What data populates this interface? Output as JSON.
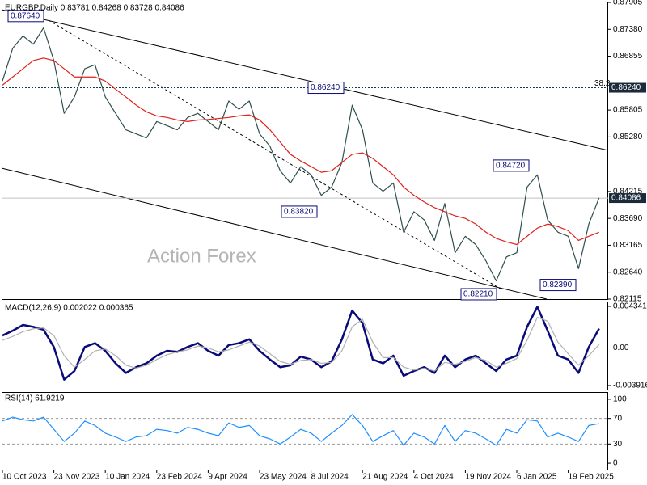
{
  "chart_data": [
    {
      "type": "line",
      "title": "EURGBP,Daily  0.83781 0.84268 0.83728 0.84086",
      "watermark": "Action Forex",
      "categories": [
        "10 Oct 2023",
        null,
        null,
        null,
        null,
        "23 Nov 2023",
        null,
        null,
        null,
        null,
        "10 Jan 2024",
        null,
        null,
        null,
        null,
        "23 Feb 2024",
        null,
        null,
        null,
        null,
        "9 Apr 2024",
        null,
        null,
        null,
        null,
        "23 May 2024",
        null,
        null,
        null,
        null,
        "8 Jul 2024",
        null,
        null,
        null,
        null,
        "21 Aug 2024",
        null,
        null,
        null,
        null,
        "4 Oct 2024",
        null,
        null,
        null,
        null,
        "19 Nov 2024",
        null,
        null,
        null,
        null,
        "6 Jan 2025",
        null,
        null,
        null,
        null,
        "19 Feb 2025",
        null,
        null,
        null
      ],
      "series": [
        {
          "color": "#2f4f4f",
          "values": [
            0.8637,
            0.8701,
            0.8725,
            0.8709,
            0.8741,
            0.8677,
            0.8574,
            0.8606,
            0.8661,
            0.8669,
            0.8606,
            0.8574,
            0.8542,
            0.8534,
            0.8526,
            0.8558,
            0.855,
            0.8542,
            0.8566,
            0.8574,
            0.8558,
            0.8542,
            0.8598,
            0.8582,
            0.8598,
            0.8534,
            0.851,
            0.8462,
            0.8438,
            0.847,
            0.8454,
            0.8414,
            0.843,
            0.8478,
            0.859,
            0.8542,
            0.8438,
            0.8422,
            0.8438,
            0.8342,
            0.8382,
            0.8366,
            0.8326,
            0.8398,
            0.8302,
            0.8334,
            0.8318,
            0.8286,
            0.8247,
            0.8294,
            0.8302,
            0.843,
            0.8454,
            0.8366,
            0.8342,
            0.8334,
            0.8271,
            0.8358,
            0.8409
          ]
        },
        {
          "color": "#e0201b",
          "values": [
            0.8629,
            0.8645,
            0.8661,
            0.8677,
            0.8682,
            0.8677,
            0.8661,
            0.8645,
            0.8645,
            0.8645,
            0.8637,
            0.8621,
            0.8606,
            0.859,
            0.8577,
            0.8569,
            0.8566,
            0.8561,
            0.8558,
            0.8561,
            0.8562,
            0.8564,
            0.8566,
            0.8569,
            0.8571,
            0.8561,
            0.8542,
            0.8518,
            0.8494,
            0.8481,
            0.847,
            0.8459,
            0.8462,
            0.8478,
            0.8494,
            0.8497,
            0.8486,
            0.847,
            0.8454,
            0.843,
            0.8414,
            0.8401,
            0.839,
            0.8382,
            0.8374,
            0.8369,
            0.8358,
            0.8342,
            0.833,
            0.8323,
            0.8318,
            0.8334,
            0.835,
            0.8358,
            0.8353,
            0.8345,
            0.8326,
            0.8334,
            0.8342
          ]
        }
      ],
      "ylim": [
        0.82115,
        0.87905
      ],
      "yticks": [
        {
          "value": 0.87905,
          "label": "0.87905"
        },
        {
          "value": 0.8738,
          "label": "0.87380"
        },
        {
          "value": 0.86855,
          "label": "0.86855"
        },
        {
          "value": 0.85805,
          "label": "0.85805"
        },
        {
          "value": 0.8528,
          "label": "0.85280"
        },
        {
          "value": 0.84215,
          "label": "0.84215"
        },
        {
          "value": 0.8369,
          "label": "0.83690"
        },
        {
          "value": 0.83165,
          "label": "0.83165"
        },
        {
          "value": 0.8264,
          "label": "0.82640"
        },
        {
          "value": 0.82115,
          "label": "0.82115"
        }
      ],
      "annotations": [
        {
          "value": 0.8764,
          "label": "0.87640"
        },
        {
          "value": 0.8624,
          "label": "0.86240"
        },
        {
          "value": 0.8382,
          "label": "0.83820"
        },
        {
          "value": 0.8221,
          "label": "0.82210"
        },
        {
          "value": 0.8472,
          "label": "0.84720"
        },
        {
          "value": 0.8239,
          "label": "0.82390"
        }
      ],
      "levels": [
        {
          "value": 0.8624,
          "label": "0.86240",
          "name": "38.2"
        }
      ],
      "last_price": {
        "value": 0.84086,
        "label": "0.84086"
      }
    },
    {
      "type": "line",
      "title": "MACD(12,26,9) 0.002022 0.000365",
      "series": [
        {
          "color": "#0a0a78",
          "values": [
            0.0013,
            0.0018,
            0.0024,
            0.0022,
            0.0019,
            0.0001,
            -0.0033,
            -0.0024,
            0.0001,
            0.0005,
            -0.0003,
            -0.0016,
            -0.0026,
            -0.002,
            -0.0016,
            -0.0008,
            -0.0003,
            -0.0004,
            0.0001,
            0.0005,
            -0.0003,
            -0.0008,
            0.0003,
            0.0005,
            0.0009,
            -0.0003,
            -0.0012,
            -0.002,
            -0.0018,
            -0.0009,
            -0.0012,
            -0.002,
            -0.0014,
            0.0009,
            0.0039,
            0.0026,
            -0.0012,
            -0.0016,
            -0.0008,
            -0.0029,
            -0.0024,
            -0.002,
            -0.0026,
            -0.0008,
            -0.002,
            -0.0012,
            -0.0008,
            -0.0016,
            -0.0024,
            -0.0012,
            -0.0008,
            0.0022,
            0.0043,
            0.0018,
            -0.0008,
            -0.0012,
            -0.0026,
            0.0001,
            0.002022
          ]
        },
        {
          "color": "#b0b0b0",
          "values": [
            0.0008,
            0.0012,
            0.0017,
            0.002,
            0.0021,
            0.0013,
            -0.0008,
            -0.002,
            -0.0012,
            -0.0003,
            -0.0001,
            -0.0008,
            -0.0018,
            -0.0021,
            -0.0018,
            -0.0012,
            -0.0007,
            -0.0004,
            -0.0002,
            0.0002,
            0,
            -0.0004,
            -0.0002,
            0.0002,
            0.0006,
            0.0002,
            -0.0006,
            -0.0014,
            -0.0017,
            -0.0013,
            -0.0012,
            -0.0016,
            -0.0015,
            -0.0003,
            0.0022,
            0.003,
            0.0006,
            -0.001,
            -0.001,
            -0.002,
            -0.0023,
            -0.0021,
            -0.0024,
            -0.0015,
            -0.0017,
            -0.0014,
            -0.001,
            -0.0013,
            -0.002,
            -0.0016,
            -0.0011,
            0.0008,
            0.0032,
            0.0028,
            0.0006,
            -0.0006,
            -0.0018,
            -0.0008,
            0.000365
          ]
        }
      ],
      "ylim": [
        -0.00434,
        0.00476
      ],
      "yticks": [
        {
          "value": 0.004341,
          "label": "0.004341"
        },
        {
          "value": 0,
          "label": "0.00"
        },
        {
          "value": -0.003916,
          "label": "-0.003916"
        }
      ],
      "levels": [
        {
          "value": 0
        }
      ]
    },
    {
      "type": "line",
      "title": "RSI(14) 61.9219",
      "series": [
        {
          "color": "#1e90ff",
          "values": [
            66,
            72,
            68,
            66,
            72,
            53,
            34,
            47,
            66,
            59,
            47,
            41,
            34,
            41,
            43,
            53,
            51,
            47,
            56,
            53,
            47,
            43,
            63,
            56,
            59,
            43,
            38,
            30,
            41,
            53,
            47,
            34,
            47,
            59,
            76,
            59,
            34,
            43,
            51,
            28,
            47,
            41,
            30,
            59,
            34,
            51,
            47,
            38,
            28,
            53,
            47,
            68,
            66,
            41,
            47,
            41,
            34,
            59,
            61.9219
          ]
        }
      ],
      "ylim": [
        -10,
        110
      ],
      "yticks": [
        100,
        70,
        30,
        0
      ],
      "levels": [
        {
          "value": 70
        },
        {
          "value": 30
        }
      ]
    }
  ]
}
